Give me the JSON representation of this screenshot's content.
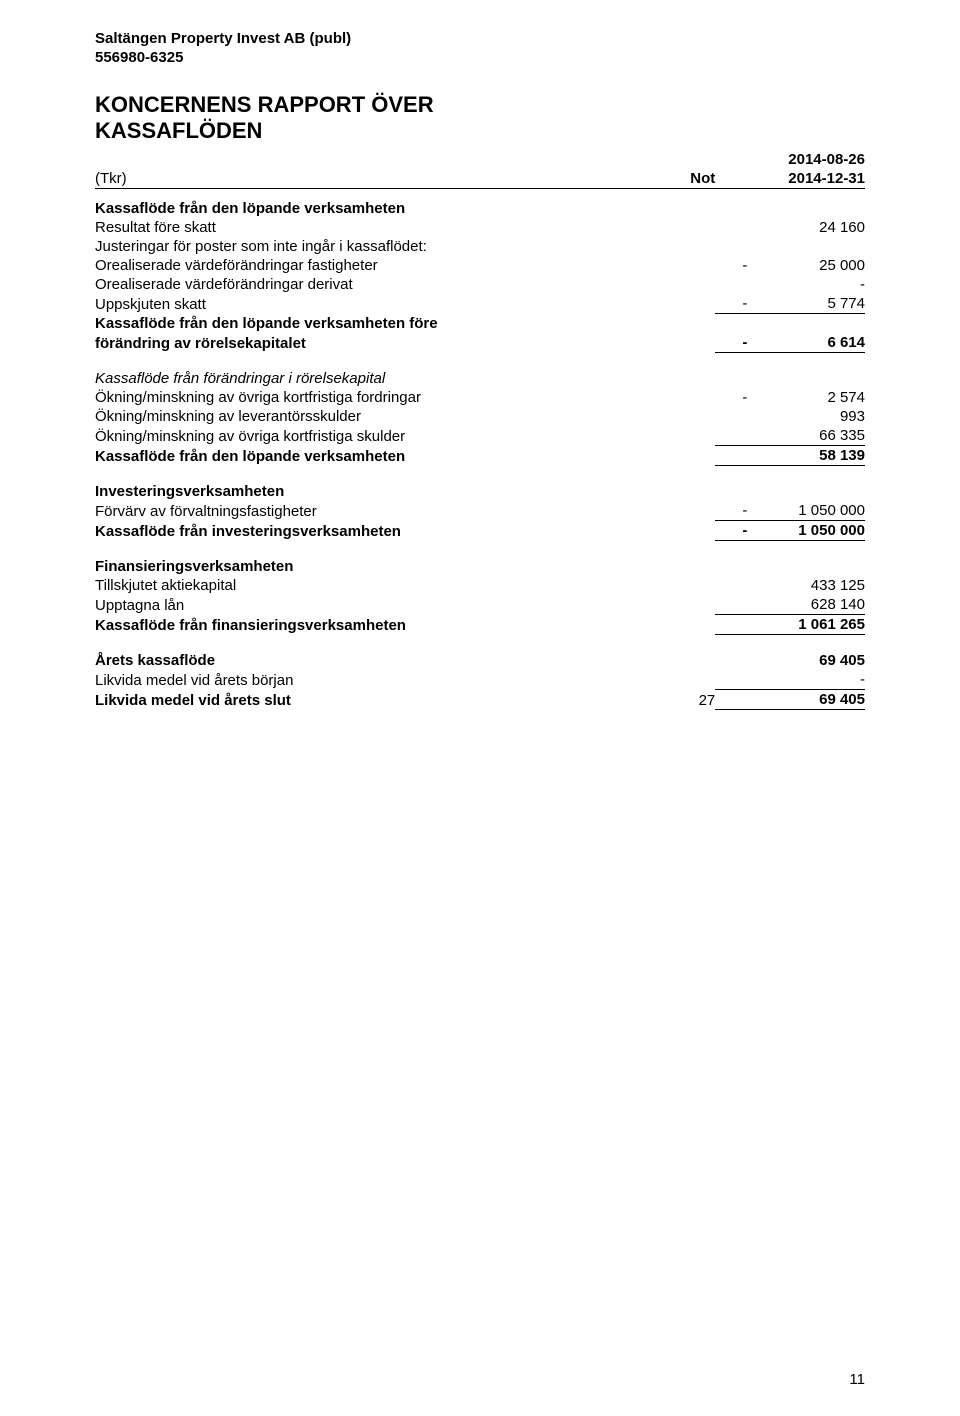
{
  "header": {
    "company": "Saltängen Property Invest AB (publ)",
    "orgnr": "556980-6325"
  },
  "title": {
    "line1": "KONCERNENS RAPPORT ÖVER",
    "line2": "KASSAFLÖDEN"
  },
  "colhead": {
    "tkr": "(Tkr)",
    "not": "Not",
    "period1": "2014-08-26",
    "period2": "2014-12-31"
  },
  "rows": {
    "op_heading": "Kassaflöde från den löpande verksamheten",
    "r1": {
      "label": "Resultat före skatt",
      "sign": "",
      "val": "24 160"
    },
    "r2": {
      "label": "Justeringar för poster som inte ingår i kassaflödet:"
    },
    "r3": {
      "label": "Orealiserade värdeförändringar fastigheter",
      "sign": "-",
      "val": "25 000"
    },
    "r4": {
      "label": "Orealiserade värdeförändringar derivat",
      "sign": "",
      "val": "-"
    },
    "r5": {
      "label": "Uppskjuten skatt",
      "sign": "-",
      "val": "5 774"
    },
    "r6a": {
      "label": "Kassaflöde från den löpande verksamheten före"
    },
    "r6b": {
      "label": "förändring av rörelsekapitalet",
      "sign": "-",
      "val": "6 614"
    },
    "wc_heading": "Kassaflöde från förändringar i rörelsekapital",
    "r7": {
      "label": "Ökning/minskning av övriga kortfristiga fordringar",
      "sign": "-",
      "val": "2 574"
    },
    "r8": {
      "label": "Ökning/minskning av leverantörsskulder",
      "sign": "",
      "val": "993"
    },
    "r9": {
      "label": "Ökning/minskning av övriga kortfristiga skulder",
      "sign": "",
      "val": "66 335"
    },
    "r10": {
      "label": "Kassaflöde från den löpande verksamheten",
      "sign": "",
      "val": "58 139"
    },
    "inv_heading": "Investeringsverksamheten",
    "r11": {
      "label": "Förvärv av förvaltningsfastigheter",
      "sign": "-",
      "val": "1 050 000"
    },
    "r12": {
      "label": "Kassaflöde från investeringsverksamheten",
      "sign": "-",
      "val": "1 050 000"
    },
    "fin_heading": "Finansieringsverksamheten",
    "r13": {
      "label": "Tillskjutet aktiekapital",
      "sign": "",
      "val": "433 125"
    },
    "r14": {
      "label": "Upptagna lån",
      "sign": "",
      "val": "628 140"
    },
    "r15": {
      "label": "Kassaflöde från finansieringsverksamheten",
      "sign": "",
      "val": "1 061 265"
    },
    "r16": {
      "label": "Årets kassaflöde",
      "sign": "",
      "val": "69 405"
    },
    "r17": {
      "label": "Likvida medel vid årets början",
      "sign": "",
      "val": "-"
    },
    "r18": {
      "label": "Likvida medel vid årets slut",
      "not": "27",
      "sign": "",
      "val": "69 405"
    }
  },
  "page_number": "11"
}
